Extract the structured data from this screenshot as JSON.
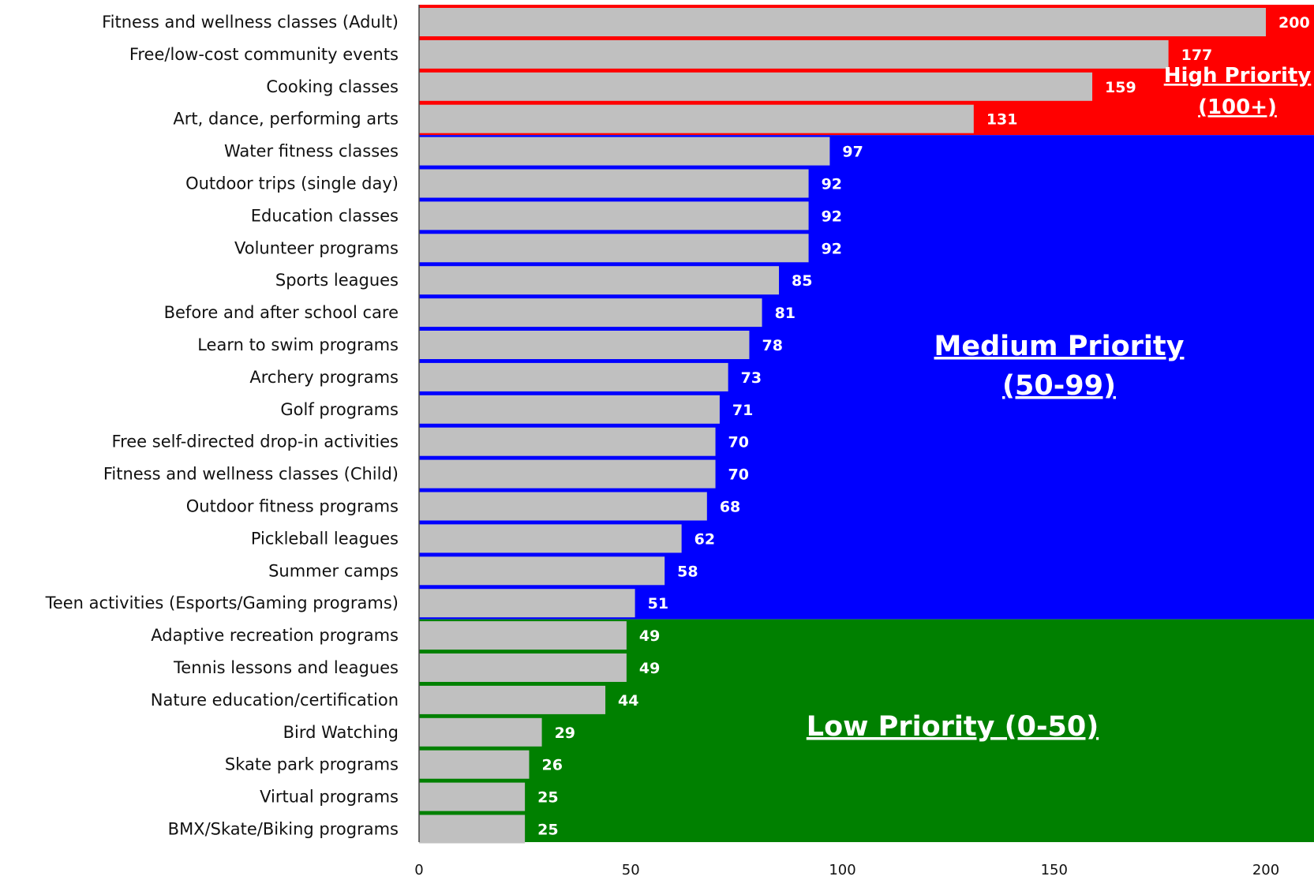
{
  "chart_data": {
    "type": "bar",
    "orientation": "horizontal",
    "categories": [
      "Fitness and wellness classes (Adult)",
      "Free/low-cost community events",
      "Cooking classes",
      "Art, dance, performing arts",
      "Water fitness classes",
      "Outdoor trips (single day)",
      "Education classes",
      "Volunteer programs",
      "Sports leagues",
      "Before and after school care",
      "Learn to swim programs",
      "Archery programs",
      "Golf programs",
      "Free self-directed drop-in activities",
      "Fitness and wellness classes (Child)",
      "Outdoor fitness programs",
      "Pickleball leagues",
      "Summer camps",
      "Teen activities (Esports/Gaming programs)",
      "Adaptive recreation programs",
      "Tennis lessons and leagues",
      "Nature education/certification",
      "Bird Watching",
      "Skate park programs",
      "Virtual programs",
      "BMX/Skate/Biking programs"
    ],
    "values": [
      200,
      177,
      159,
      131,
      97,
      92,
      92,
      92,
      85,
      81,
      78,
      73,
      71,
      70,
      70,
      68,
      62,
      58,
      51,
      49,
      49,
      44,
      29,
      26,
      25,
      25
    ],
    "xlim": [
      0,
      210
    ],
    "xticks": [
      0,
      50,
      100,
      150,
      200
    ],
    "bar_color": "#c0c0c0",
    "zones": [
      {
        "label_lines": [
          "High Priority",
          "(100+)"
        ],
        "color": "#ff0000",
        "from_category": 0,
        "to_category": 3
      },
      {
        "label_lines": [
          "Medium Priority",
          "(50-99)"
        ],
        "color": "#0000ff",
        "from_category": 4,
        "to_category": 18
      },
      {
        "label_lines": [
          "Low Priority (0-50)"
        ],
        "color": "#008000",
        "from_category": 19,
        "to_category": 25
      }
    ]
  }
}
